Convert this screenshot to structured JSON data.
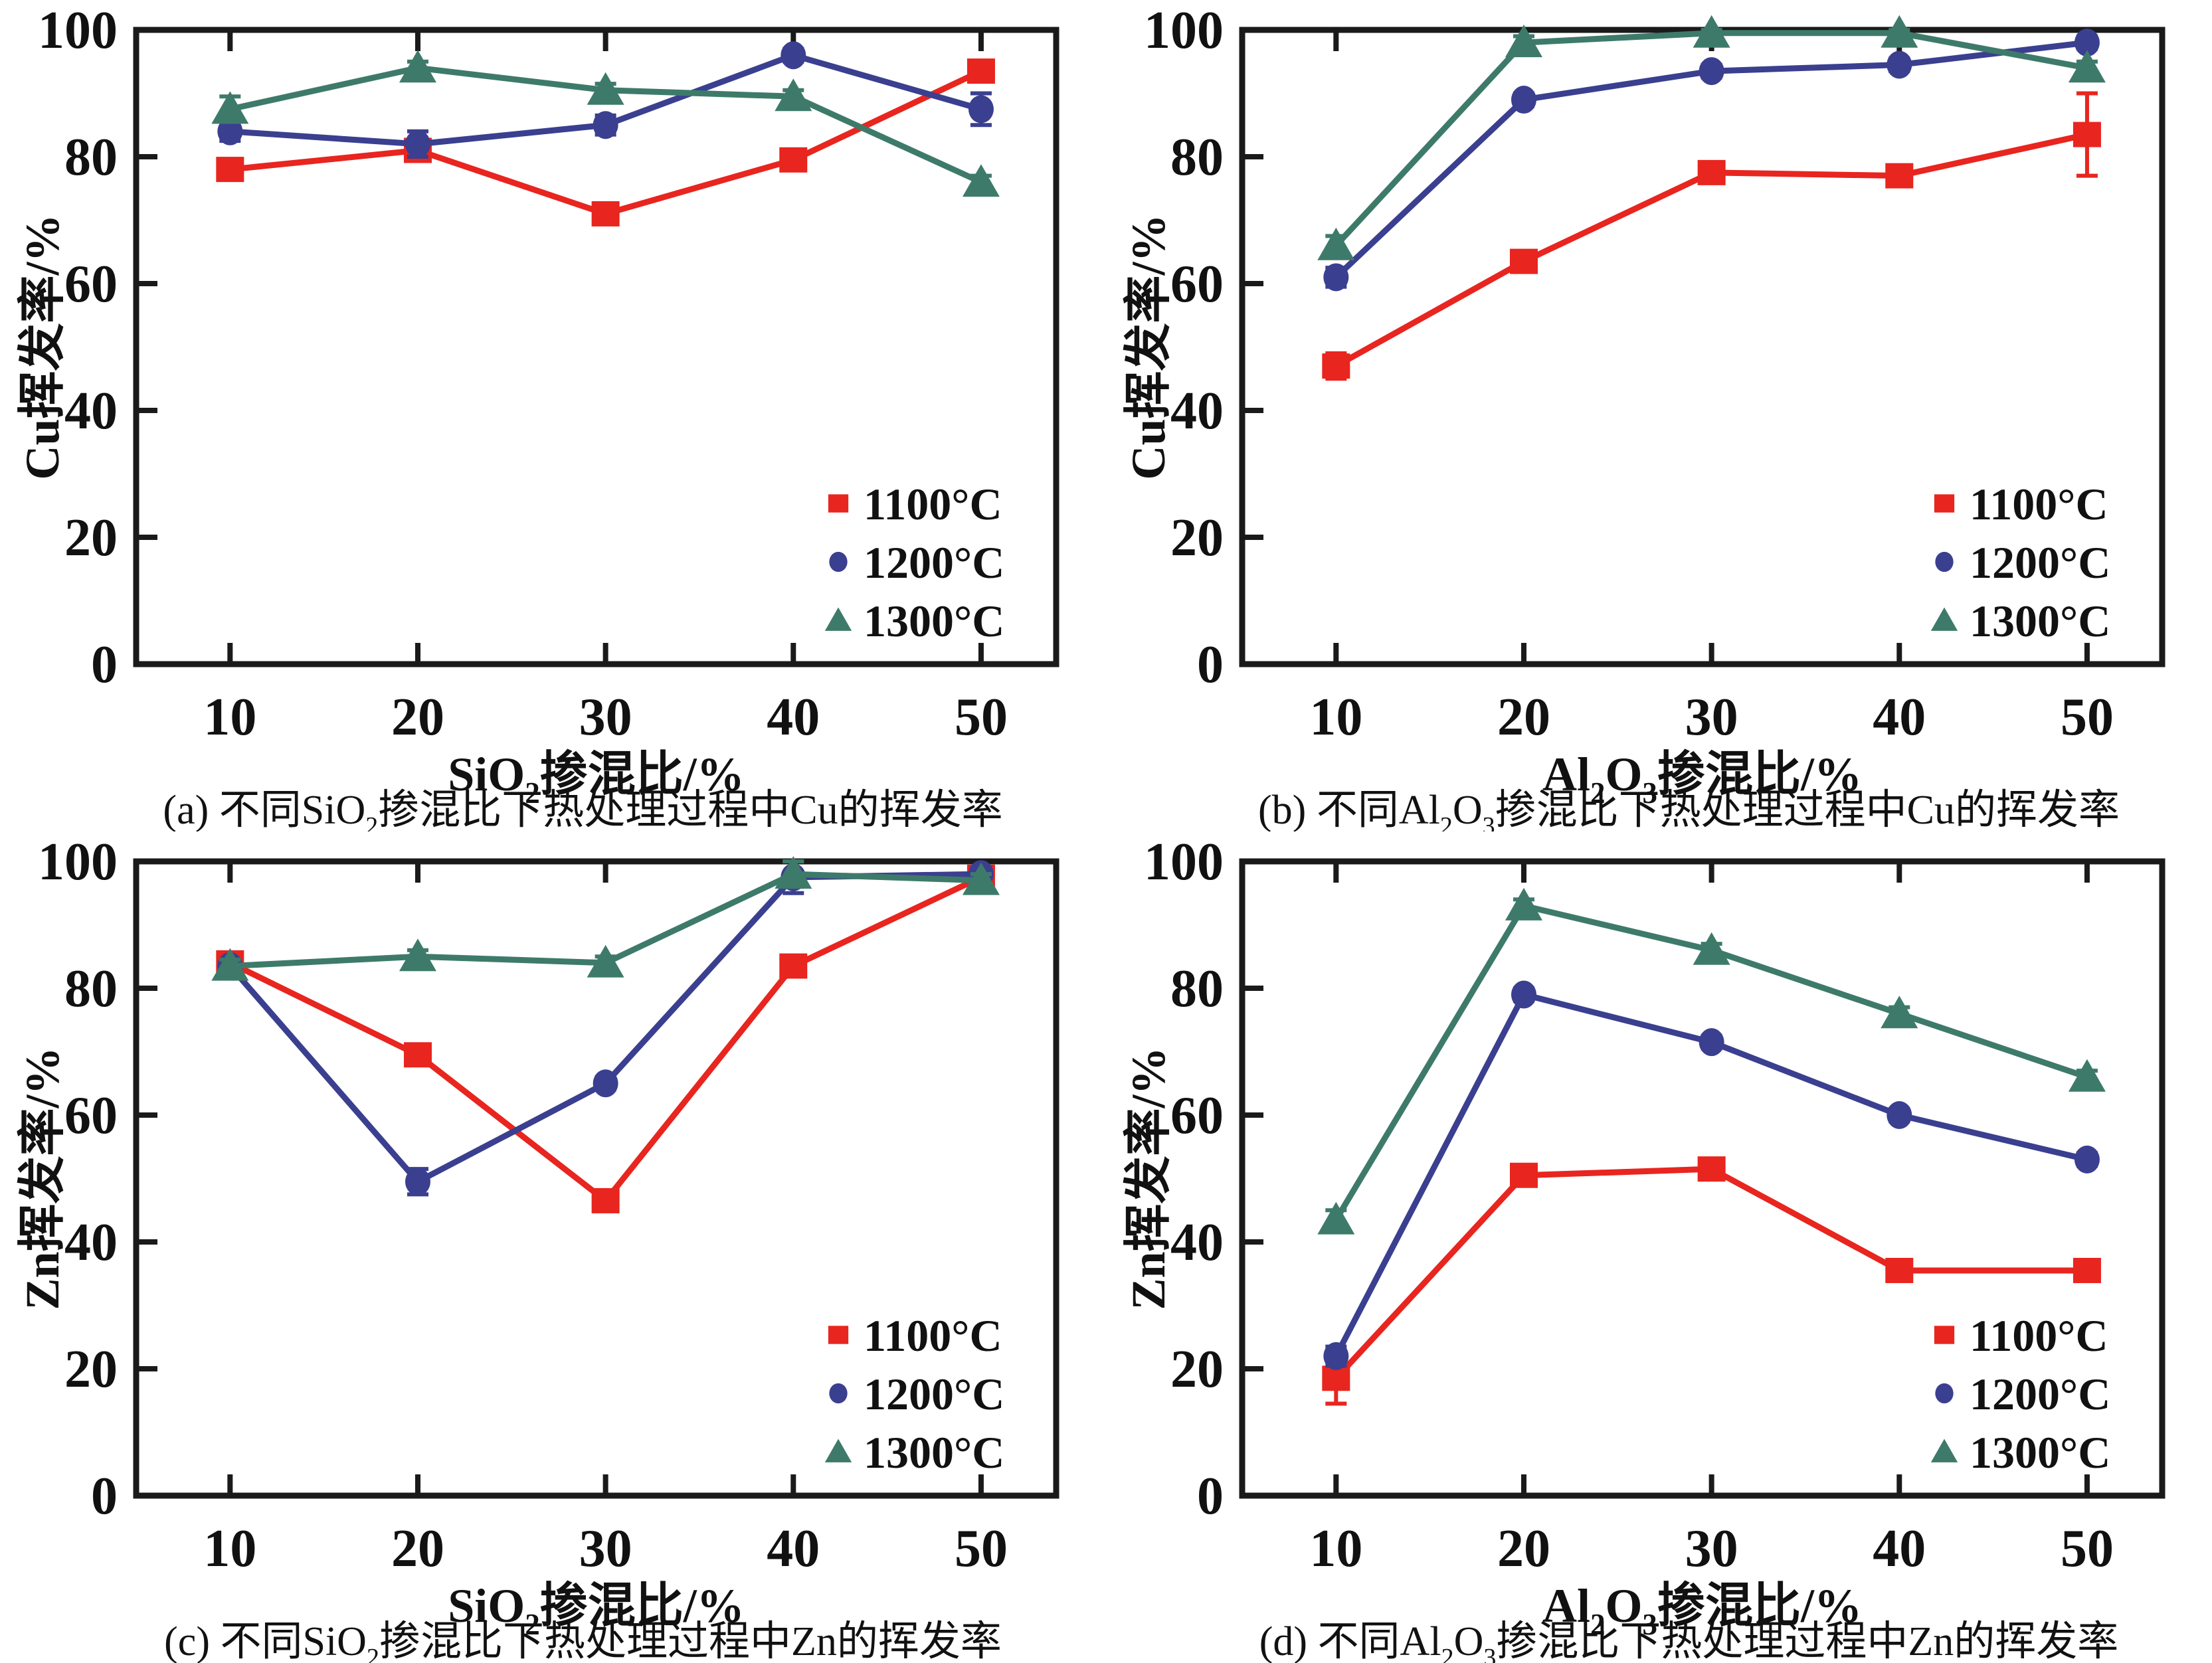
{
  "figure": {
    "background": "#ffffff",
    "axis_color": "#1a1a1a",
    "text_color": "#111111",
    "legend": {
      "position": "lower-right",
      "items": [
        {
          "label": "1100°C",
          "marker": "square",
          "color": "#e8251f"
        },
        {
          "label": "1200°C",
          "marker": "circle",
          "color": "#3a3f8f"
        },
        {
          "label": "1300°C",
          "marker": "triangle",
          "color": "#3e7a6a"
        }
      ]
    }
  },
  "chart_data": [
    {
      "panel": "a",
      "type": "line",
      "caption": "(a) 不同SiO2掺混比下热处理过程中Cu的挥发率",
      "caption_parts": [
        {
          "t": "(a) 不同SiO"
        },
        {
          "s": "2"
        },
        {
          "t": "掺混比下热处理过程中Cu的挥发率"
        }
      ],
      "xlabel": "SiO2掺混比/%",
      "xlabel_parts": [
        {
          "t": "SiO"
        },
        {
          "s": "2"
        },
        {
          "t": "掺混比/%"
        }
      ],
      "ylabel": "Cu挥发率/%",
      "x": [
        10,
        20,
        30,
        40,
        50
      ],
      "xlim": [
        5,
        54
      ],
      "ylim": [
        0,
        100
      ],
      "yticks": [
        0,
        20,
        40,
        60,
        80,
        100
      ],
      "grid": false,
      "legend_position": "lower-right",
      "series": [
        {
          "name": "1100°C",
          "marker": "square",
          "color": "#e8251f",
          "values": [
            78,
            81,
            71,
            79.5,
            93.5
          ],
          "errors": [
            1,
            1,
            1,
            1,
            1
          ]
        },
        {
          "name": "1200°C",
          "marker": "circle",
          "color": "#3a3f8f",
          "values": [
            84,
            82,
            85,
            96,
            87.5
          ],
          "errors": [
            1.5,
            2,
            1.5,
            1,
            2.5
          ]
        },
        {
          "name": "1300°C",
          "marker": "triangle",
          "color": "#3e7a6a",
          "values": [
            87.5,
            94,
            90.5,
            89.5,
            76
          ],
          "errors": [
            2,
            1,
            1,
            1,
            1
          ]
        }
      ]
    },
    {
      "panel": "b",
      "type": "line",
      "caption": "(b) 不同Al2O3掺混比下热处理过程中Cu的挥发率",
      "caption_parts": [
        {
          "t": "(b) 不同Al"
        },
        {
          "s": "2"
        },
        {
          "t": "O"
        },
        {
          "s": "3"
        },
        {
          "t": "掺混比下热处理过程中Cu的挥发率"
        }
      ],
      "xlabel": "Al2O3掺混比/%",
      "xlabel_parts": [
        {
          "t": "Al"
        },
        {
          "s": "2"
        },
        {
          "t": "O"
        },
        {
          "s": "3"
        },
        {
          "t": "掺混比/%"
        }
      ],
      "ylabel": "Cu挥发率/%",
      "x": [
        10,
        20,
        30,
        40,
        50
      ],
      "xlim": [
        5,
        54
      ],
      "ylim": [
        0,
        100
      ],
      "yticks": [
        0,
        20,
        40,
        60,
        80,
        100
      ],
      "grid": false,
      "legend_position": "lower-right",
      "series": [
        {
          "name": "1100°C",
          "marker": "square",
          "color": "#e8251f",
          "values": [
            47,
            63.5,
            77.5,
            77,
            83.5
          ],
          "errors": [
            2,
            1.5,
            1,
            1,
            6.5
          ]
        },
        {
          "name": "1200°C",
          "marker": "circle",
          "color": "#3a3f8f",
          "values": [
            61,
            89,
            93.5,
            94.5,
            98
          ],
          "errors": [
            1.5,
            1,
            1,
            1,
            1
          ]
        },
        {
          "name": "1300°C",
          "marker": "triangle",
          "color": "#3e7a6a",
          "values": [
            66,
            98,
            99.5,
            99.5,
            94
          ],
          "errors": [
            1.5,
            1,
            0.5,
            0.5,
            1
          ]
        }
      ]
    },
    {
      "panel": "c",
      "type": "line",
      "caption": "(c) 不同SiO2掺混比下热处理过程中Zn的挥发率",
      "caption_parts": [
        {
          "t": "(c) 不同SiO"
        },
        {
          "s": "2"
        },
        {
          "t": "掺混比下热处理过程中Zn的挥发率"
        }
      ],
      "xlabel": "SiO2掺混比/%",
      "xlabel_parts": [
        {
          "t": "SiO"
        },
        {
          "s": "2"
        },
        {
          "t": "掺混比/%"
        }
      ],
      "ylabel": "Zn挥发率/%",
      "x": [
        10,
        20,
        30,
        40,
        50
      ],
      "xlim": [
        5,
        54
      ],
      "ylim": [
        0,
        100
      ],
      "yticks": [
        0,
        20,
        40,
        60,
        80,
        100
      ],
      "grid": false,
      "legend_position": "lower-right",
      "series": [
        {
          "name": "1100°C",
          "marker": "square",
          "color": "#e8251f",
          "values": [
            84,
            69.5,
            46.5,
            83.5,
            97.5
          ],
          "errors": [
            1,
            1,
            1.5,
            1,
            1
          ]
        },
        {
          "name": "1200°C",
          "marker": "circle",
          "color": "#3a3f8f",
          "values": [
            83.5,
            49.5,
            65,
            97.5,
            98
          ],
          "errors": [
            1,
            2,
            1,
            2.5,
            1
          ]
        },
        {
          "name": "1300°C",
          "marker": "triangle",
          "color": "#3e7a6a",
          "values": [
            83.5,
            85,
            84,
            98,
            97
          ],
          "errors": [
            1,
            1,
            1,
            2,
            1
          ]
        }
      ]
    },
    {
      "panel": "d",
      "type": "line",
      "caption": "(d) 不同Al2O3掺混比下热处理过程中Zn的挥发率",
      "caption_parts": [
        {
          "t": "(d) 不同Al"
        },
        {
          "s": "2"
        },
        {
          "t": "O"
        },
        {
          "s": "3"
        },
        {
          "t": "掺混比下热处理过程中Zn的挥发率"
        }
      ],
      "xlabel": "Al2O3掺混比/%",
      "xlabel_parts": [
        {
          "t": "Al"
        },
        {
          "s": "2"
        },
        {
          "t": "O"
        },
        {
          "s": "3"
        },
        {
          "t": "掺混比/%"
        }
      ],
      "ylabel": "Zn挥发率/%",
      "x": [
        10,
        20,
        30,
        40,
        50
      ],
      "xlim": [
        5,
        54
      ],
      "ylim": [
        0,
        100
      ],
      "yticks": [
        0,
        20,
        40,
        60,
        80,
        100
      ],
      "grid": false,
      "legend_position": "lower-right",
      "series": [
        {
          "name": "1100°C",
          "marker": "square",
          "color": "#e8251f",
          "values": [
            18.5,
            50.5,
            51.5,
            35.5,
            35.5
          ],
          "errors": [
            4,
            1.5,
            1,
            1.5,
            1.5
          ]
        },
        {
          "name": "1200°C",
          "marker": "circle",
          "color": "#3a3f8f",
          "values": [
            22,
            79,
            71.5,
            60,
            53
          ],
          "errors": [
            1.5,
            1,
            1,
            1,
            1
          ]
        },
        {
          "name": "1300°C",
          "marker": "triangle",
          "color": "#3e7a6a",
          "values": [
            43.5,
            93,
            86,
            76,
            66
          ],
          "errors": [
            1.5,
            1,
            1,
            1,
            1
          ]
        }
      ]
    }
  ]
}
